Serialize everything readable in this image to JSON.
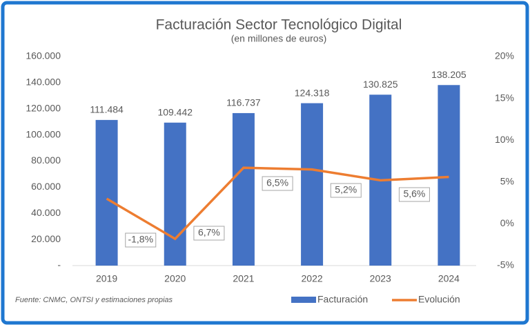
{
  "chart_data": {
    "type": "bar-line",
    "title": "Facturación Sector Tecnológico Digital",
    "subtitle": "(en millones de euros)",
    "source": "Fuente: CNMC, ONTSI y estimaciones propias",
    "categories": [
      "2019",
      "2020",
      "2021",
      "2022",
      "2023",
      "2024"
    ],
    "series": [
      {
        "name": "Facturación",
        "type": "bar",
        "color": "#4472c4",
        "values": [
          111484,
          109442,
          116737,
          124318,
          130825,
          138205
        ],
        "value_labels": [
          "111.484",
          "109.442",
          "116.737",
          "124.318",
          "130.825",
          "138.205"
        ]
      },
      {
        "name": "Evolución",
        "type": "line",
        "axis": "y2",
        "color": "#ed7d31",
        "values": [
          3.0,
          -1.8,
          6.7,
          6.5,
          5.2,
          5.6
        ],
        "value_labels": [
          null,
          "-1,8%",
          "6,7%",
          "6,5%",
          "5,2%",
          "5,6%"
        ]
      }
    ],
    "ylim": [
      0,
      160000
    ],
    "yticks": [
      {
        "value": 0,
        "label": "-"
      },
      {
        "value": 20000,
        "label": "20.000"
      },
      {
        "value": 40000,
        "label": "40.000"
      },
      {
        "value": 60000,
        "label": "60.000"
      },
      {
        "value": 80000,
        "label": "80.000"
      },
      {
        "value": 100000,
        "label": "100.000"
      },
      {
        "value": 120000,
        "label": "120.000"
      },
      {
        "value": 140000,
        "label": "140.000"
      },
      {
        "value": 160000,
        "label": "160.000"
      }
    ],
    "y2lim": [
      -5,
      20
    ],
    "y2ticks": [
      {
        "value": -5,
        "label": "-5%"
      },
      {
        "value": 0,
        "label": "0%"
      },
      {
        "value": 5,
        "label": "5%"
      },
      {
        "value": 10,
        "label": "10%"
      },
      {
        "value": 15,
        "label": "15%"
      },
      {
        "value": 20,
        "label": "20%"
      }
    ]
  }
}
